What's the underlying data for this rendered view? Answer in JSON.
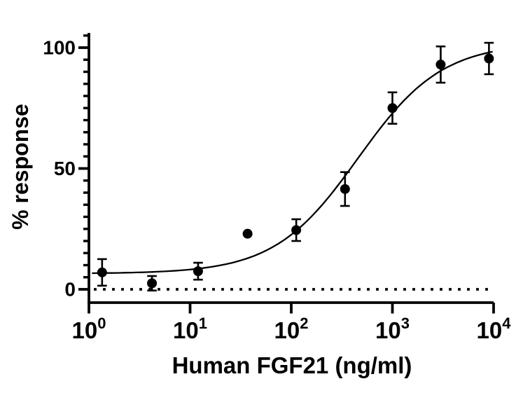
{
  "chart_data": {
    "type": "scatter",
    "title": "",
    "xlabel": "Human FGF21 (ng/ml)",
    "ylabel": "% response",
    "x_scale": "log10",
    "xlim": [
      1,
      10000
    ],
    "ylim": [
      0,
      100
    ],
    "x_ticks": [
      {
        "value": 1,
        "base": "10",
        "exp": "0"
      },
      {
        "value": 10,
        "base": "10",
        "exp": "1"
      },
      {
        "value": 100,
        "base": "10",
        "exp": "2"
      },
      {
        "value": 1000,
        "base": "10",
        "exp": "3"
      },
      {
        "value": 10000,
        "base": "10",
        "exp": "4"
      }
    ],
    "y_ticks": [
      {
        "value": 0,
        "label": "0"
      },
      {
        "value": 50,
        "label": "50"
      },
      {
        "value": 100,
        "label": "100"
      }
    ],
    "y_minor_tick_step": 5,
    "grid": false,
    "legend": false,
    "ink_color": "#000000",
    "background_color": "#ffffff",
    "series": [
      {
        "name": "Human FGF21",
        "marker": "filled-circle",
        "points": [
          {
            "x": 1.35,
            "y": 7,
            "err": 5.5
          },
          {
            "x": 4.2,
            "y": 2.5,
            "err": 3
          },
          {
            "x": 12,
            "y": 7.5,
            "err": 3.5
          },
          {
            "x": 37,
            "y": 23,
            "err": 0
          },
          {
            "x": 112,
            "y": 24.5,
            "err": 4.5
          },
          {
            "x": 340,
            "y": 41.5,
            "err": 7
          },
          {
            "x": 1000,
            "y": 75,
            "err": 6.5
          },
          {
            "x": 3000,
            "y": 93,
            "err": 7.5
          },
          {
            "x": 9000,
            "y": 95.5,
            "err": 6.5
          }
        ]
      }
    ],
    "fit_curve": {
      "model": "four-parameter-logistic",
      "bottom": 6.5,
      "top": 102,
      "log_ec50": 2.66,
      "hill": 1.05
    },
    "baseline": {
      "y": 0,
      "style": "dotted"
    }
  }
}
